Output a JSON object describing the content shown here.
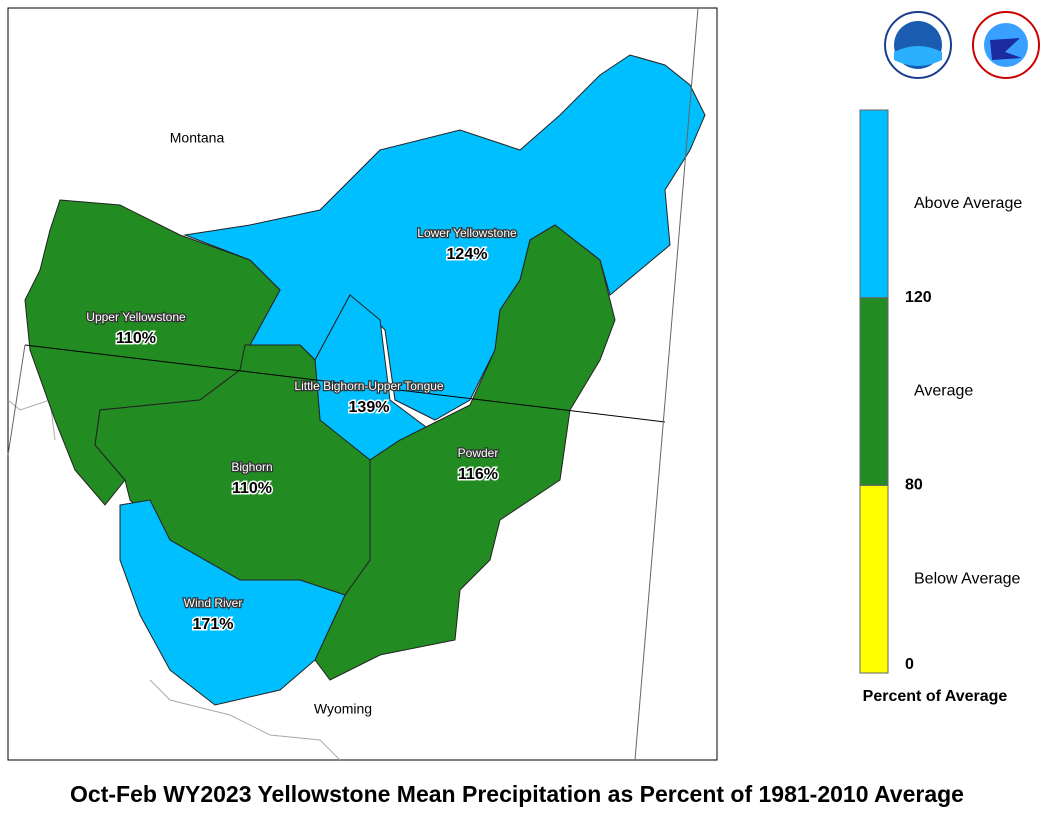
{
  "title": "Oct-Feb WY2023 Yellowstone Mean Precipitation as Percent of 1981-2010 Average",
  "states": [
    "Montana",
    "Wyoming"
  ],
  "basins": [
    {
      "name": "Lower Yellowstone",
      "value": 124,
      "label": "124%"
    },
    {
      "name": "Little Bighorn-Upper Tongue",
      "value": 139,
      "label": "139%"
    },
    {
      "name": "Powder",
      "value": 116,
      "label": "116%"
    },
    {
      "name": "Upper Yellowstone",
      "value": 110,
      "label": "110%"
    },
    {
      "name": "Bighorn",
      "value": 110,
      "label": "110%"
    },
    {
      "name": "Wind River",
      "value": 171,
      "label": "171%"
    }
  ],
  "legend": {
    "title": "Percent of Average",
    "breaks": [
      0,
      80,
      120
    ],
    "classes": [
      {
        "label": "Below Average",
        "color": "#ffff00"
      },
      {
        "label": "Average",
        "color": "#228b22"
      },
      {
        "label": "Above Average",
        "color": "#00bfff"
      }
    ]
  }
}
